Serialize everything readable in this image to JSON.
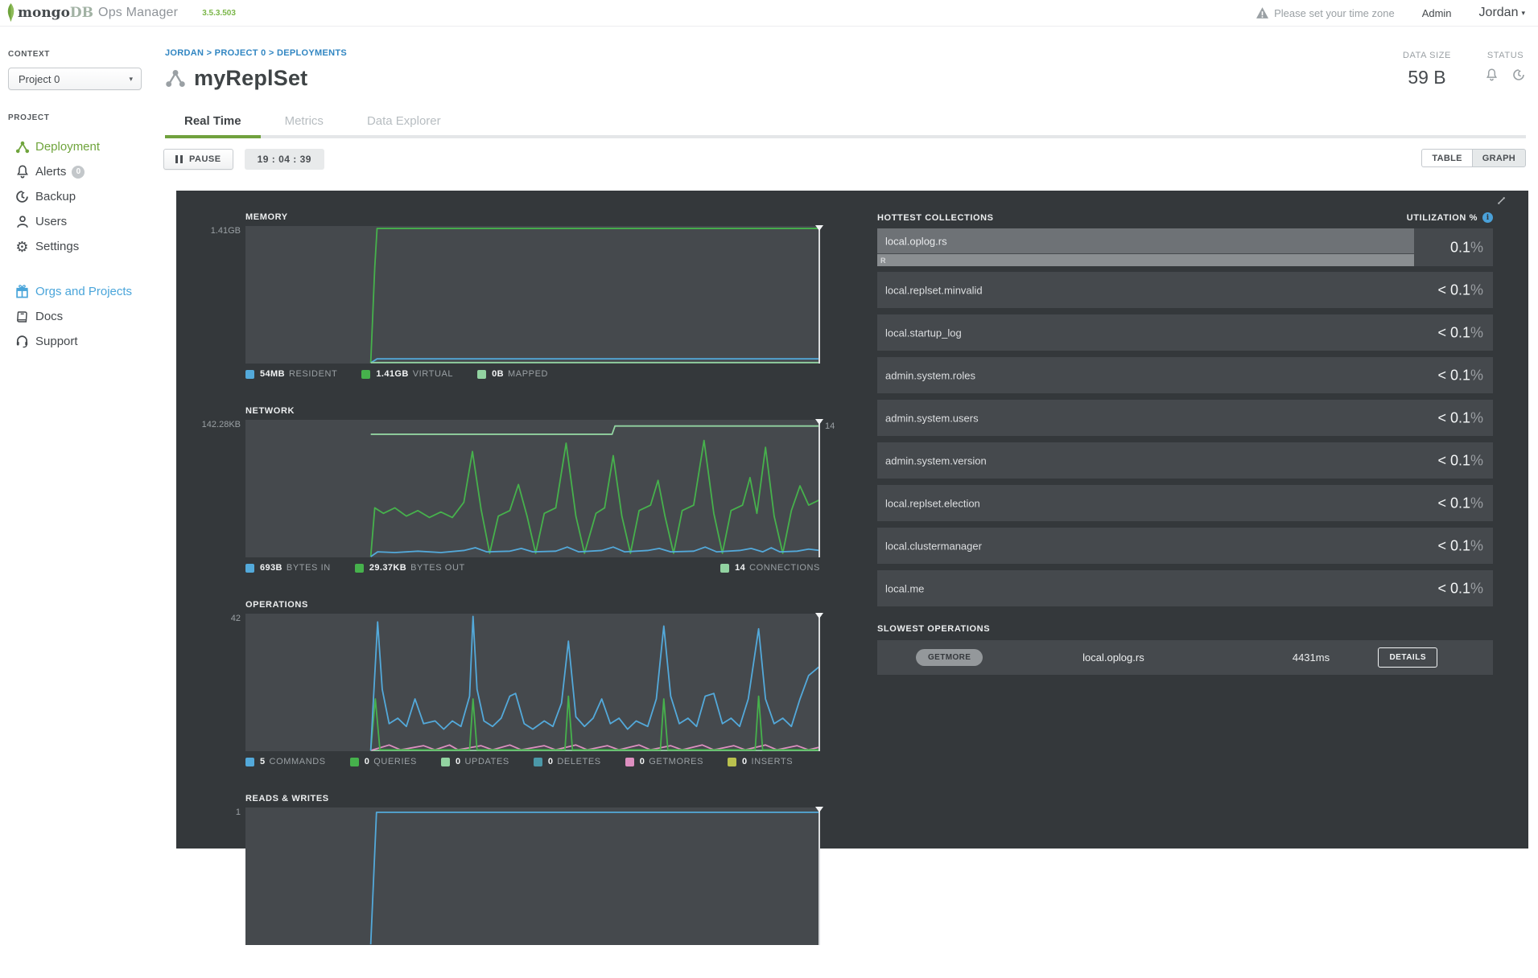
{
  "navbar": {
    "brand_mongo": "mongo",
    "brand_db": "DB",
    "brand_suffix": "Ops Manager",
    "version": "3.5.3.503",
    "timezone_warning": "Please set your time zone",
    "admin_label": "Admin",
    "user_label": "Jordan"
  },
  "sidebar": {
    "context_label": "CONTEXT",
    "context_value": "Project 0",
    "project_label": "PROJECT",
    "items": [
      {
        "label": "Deployment",
        "icon": "replica-set-icon",
        "active": true
      },
      {
        "label": "Alerts",
        "icon": "bell-icon",
        "badge": "0"
      },
      {
        "label": "Backup",
        "icon": "backup-clock-icon"
      },
      {
        "label": "Users",
        "icon": "user-icon"
      },
      {
        "label": "Settings",
        "icon": "gear-icon"
      }
    ],
    "secondary_items": [
      {
        "label": "Orgs and Projects",
        "icon": "gift-icon",
        "accent": true
      },
      {
        "label": "Docs",
        "icon": "book-icon"
      },
      {
        "label": "Support",
        "icon": "headset-icon"
      }
    ]
  },
  "header": {
    "breadcrumb": "JORDAN > PROJECT 0 > DEPLOYMENTS",
    "title": "myReplSet",
    "data_size_label": "DATA SIZE",
    "data_size_value": "59 B",
    "status_label": "STATUS"
  },
  "tabs": [
    {
      "label": "Real Time",
      "active": true
    },
    {
      "label": "Metrics",
      "active": false
    },
    {
      "label": "Data Explorer",
      "active": false
    }
  ],
  "controls": {
    "pause_label": "PAUSE",
    "clock": "19 : 04 : 39",
    "table_label": "TABLE",
    "graph_label": "GRAPH"
  },
  "charts": [
    {
      "type": "line",
      "title": "MEMORY",
      "y_axis_label": "1.41GB",
      "legend": [
        {
          "color": "#53a9da",
          "value": "54MB",
          "label": "RESIDENT"
        },
        {
          "color": "#46b14c",
          "value": "1.41GB",
          "label": "VIRTUAL"
        },
        {
          "color": "#92d3a1",
          "value": "0B",
          "label": "MAPPED"
        }
      ],
      "series": [
        {
          "name": "virtual",
          "color": "#46b14c",
          "points": [
            [
              21.8,
              99.5
            ],
            [
              22.5,
              30
            ],
            [
              22.9,
              1.8
            ],
            [
              100,
              1.8
            ]
          ]
        },
        {
          "name": "resident",
          "color": "#53a9da",
          "points": [
            [
              21.8,
              99.5
            ],
            [
              22.9,
              96.6
            ],
            [
              100,
              96.6
            ]
          ]
        },
        {
          "name": "mapped",
          "color": "#92d3a1",
          "points": [
            [
              21.8,
              99.3
            ],
            [
              100,
              99.3
            ]
          ]
        }
      ]
    },
    {
      "type": "line",
      "title": "NETWORK",
      "y_axis_label": "142.28KB",
      "right_axis_label": "14",
      "legend": [
        {
          "color": "#53a9da",
          "value": "693B",
          "label": "BYTES IN"
        },
        {
          "color": "#46b14c",
          "value": "29.37KB",
          "label": "BYTES OUT"
        },
        {
          "color": "#92d3a1",
          "value": "14",
          "label": "CONNECTIONS",
          "right": true
        }
      ],
      "series": [
        {
          "name": "connections",
          "color": "#92d3a1",
          "points": [
            [
              21.8,
              10.5
            ],
            [
              63.8,
              10.5
            ],
            [
              64.3,
              4.5
            ],
            [
              100,
              4.5
            ]
          ]
        },
        {
          "name": "bytes_out",
          "color": "#46b14c",
          "points": [
            [
              21.8,
              99.5
            ],
            [
              22.5,
              64
            ],
            [
              24,
              68
            ],
            [
              26,
              64
            ],
            [
              28,
              70
            ],
            [
              30,
              66
            ],
            [
              32,
              71
            ],
            [
              34,
              67
            ],
            [
              36,
              71
            ],
            [
              38,
              60
            ],
            [
              39.5,
              23
            ],
            [
              41,
              65
            ],
            [
              42.5,
              97
            ],
            [
              44,
              70
            ],
            [
              46,
              66
            ],
            [
              47.5,
              47
            ],
            [
              49,
              70
            ],
            [
              50.5,
              97
            ],
            [
              52,
              68
            ],
            [
              54,
              64
            ],
            [
              55.8,
              17
            ],
            [
              57.5,
              70
            ],
            [
              59,
              97
            ],
            [
              61,
              68
            ],
            [
              62.5,
              64
            ],
            [
              64,
              26
            ],
            [
              65.5,
              70
            ],
            [
              67,
              97
            ],
            [
              68.5,
              66
            ],
            [
              70.5,
              62
            ],
            [
              71.8,
              44
            ],
            [
              73,
              70
            ],
            [
              74.5,
              97
            ],
            [
              76,
              66
            ],
            [
              78,
              62
            ],
            [
              79.8,
              15
            ],
            [
              81.5,
              68
            ],
            [
              83,
              97
            ],
            [
              84.5,
              66
            ],
            [
              86.5,
              62
            ],
            [
              87.8,
              42
            ],
            [
              89,
              68
            ],
            [
              90.5,
              20
            ],
            [
              92,
              70
            ],
            [
              93.5,
              97
            ],
            [
              95,
              66
            ],
            [
              96.5,
              48
            ],
            [
              98,
              62
            ],
            [
              100,
              58
            ]
          ]
        },
        {
          "name": "bytes_in",
          "color": "#53a9da",
          "points": [
            [
              21.8,
              99.5
            ],
            [
              23,
              96
            ],
            [
              26,
              96.5
            ],
            [
              30,
              95.5
            ],
            [
              34,
              96.5
            ],
            [
              38,
              95
            ],
            [
              40,
              93
            ],
            [
              42,
              96
            ],
            [
              46,
              95.5
            ],
            [
              48,
              93.5
            ],
            [
              50,
              96
            ],
            [
              54,
              95.5
            ],
            [
              56,
              92.5
            ],
            [
              58,
              96
            ],
            [
              62,
              95
            ],
            [
              64,
              92.5
            ],
            [
              66,
              96
            ],
            [
              70,
              95
            ],
            [
              72,
              93.5
            ],
            [
              74,
              96
            ],
            [
              78,
              95.5
            ],
            [
              80,
              92.5
            ],
            [
              82,
              96
            ],
            [
              86,
              95
            ],
            [
              88,
              93.5
            ],
            [
              90,
              96
            ],
            [
              91.5,
              93
            ],
            [
              93,
              96
            ],
            [
              96,
              95.5
            ],
            [
              98,
              94
            ],
            [
              100,
              95
            ]
          ]
        }
      ]
    },
    {
      "type": "line",
      "title": "OPERATIONS",
      "y_axis_label": "42",
      "legend": [
        {
          "color": "#53a9da",
          "value": "5",
          "label": "COMMANDS"
        },
        {
          "color": "#46b14c",
          "value": "0",
          "label": "QUERIES"
        },
        {
          "color": "#92d3a1",
          "value": "0",
          "label": "UPDATES"
        },
        {
          "color": "#4b98a8",
          "value": "0",
          "label": "DELETES"
        },
        {
          "color": "#dd8fc0",
          "value": "0",
          "label": "GETMORES"
        },
        {
          "color": "#b9c14e",
          "value": "0",
          "label": "INSERTS"
        }
      ],
      "series": [
        {
          "name": "inserts",
          "color": "#b9c14e",
          "points": [
            [
              21.8,
              99.7
            ],
            [
              100,
              99.7
            ]
          ]
        },
        {
          "name": "deletes",
          "color": "#4b98a8",
          "points": [
            [
              21.8,
              99.6
            ],
            [
              100,
              99.6
            ]
          ]
        },
        {
          "name": "updates",
          "color": "#92d3a1",
          "points": [
            [
              21.8,
              99.6
            ],
            [
              100,
              99.6
            ]
          ]
        },
        {
          "name": "getmores",
          "color": "#dd8fc0",
          "points": [
            [
              21.8,
              99.5
            ],
            [
              25,
              95.5
            ],
            [
              27,
              99
            ],
            [
              31,
              96
            ],
            [
              33,
              99
            ],
            [
              35.5,
              95.5
            ],
            [
              37,
              99
            ],
            [
              41,
              96
            ],
            [
              43,
              99
            ],
            [
              46,
              95.5
            ],
            [
              48,
              99
            ],
            [
              52,
              96
            ],
            [
              54,
              99
            ],
            [
              57.5,
              95.5
            ],
            [
              59.5,
              99
            ],
            [
              63,
              96
            ],
            [
              65,
              99
            ],
            [
              68.5,
              95.5
            ],
            [
              70.5,
              99
            ],
            [
              74,
              96
            ],
            [
              76,
              99
            ],
            [
              79.5,
              95.5
            ],
            [
              81.5,
              99
            ],
            [
              85,
              96
            ],
            [
              87,
              99
            ],
            [
              90.5,
              95.5
            ],
            [
              92.5,
              99
            ],
            [
              96,
              96
            ],
            [
              98,
              99
            ],
            [
              100,
              97
            ]
          ]
        },
        {
          "name": "queries",
          "color": "#46b14c",
          "points": [
            [
              21.8,
              99.5
            ],
            [
              22.6,
              62
            ],
            [
              23.4,
              99
            ],
            [
              39,
              99
            ],
            [
              39.6,
              62
            ],
            [
              40.3,
              99
            ],
            [
              55.6,
              99
            ],
            [
              56.2,
              60
            ],
            [
              56.9,
              99
            ],
            [
              72.2,
              99
            ],
            [
              72.8,
              62
            ],
            [
              73.5,
              99
            ],
            [
              88.7,
              99
            ],
            [
              89.3,
              60
            ],
            [
              90,
              99
            ],
            [
              100,
              99
            ]
          ]
        },
        {
          "name": "commands",
          "color": "#53a9da",
          "points": [
            [
              21.8,
              99.5
            ],
            [
              22.3,
              60
            ],
            [
              23,
              6
            ],
            [
              23.8,
              55
            ],
            [
              25,
              80
            ],
            [
              26.5,
              76
            ],
            [
              28,
              82
            ],
            [
              29.5,
              62
            ],
            [
              31,
              80
            ],
            [
              33,
              78
            ],
            [
              34.5,
              84
            ],
            [
              36,
              78
            ],
            [
              37.5,
              82
            ],
            [
              39,
              60
            ],
            [
              39.6,
              2
            ],
            [
              40.3,
              55
            ],
            [
              41.5,
              78
            ],
            [
              43,
              82
            ],
            [
              44.5,
              76
            ],
            [
              46,
              60
            ],
            [
              47,
              58
            ],
            [
              48.5,
              80
            ],
            [
              50,
              84
            ],
            [
              52,
              78
            ],
            [
              53.5,
              82
            ],
            [
              55,
              65
            ],
            [
              56.2,
              20
            ],
            [
              57.5,
              75
            ],
            [
              59,
              82
            ],
            [
              60.5,
              76
            ],
            [
              62,
              62
            ],
            [
              63.5,
              80
            ],
            [
              65,
              76
            ],
            [
              66.5,
              84
            ],
            [
              68,
              78
            ],
            [
              70,
              82
            ],
            [
              71.5,
              62
            ],
            [
              72.8,
              9
            ],
            [
              74,
              60
            ],
            [
              75.5,
              80
            ],
            [
              77,
              76
            ],
            [
              78.5,
              82
            ],
            [
              80,
              60
            ],
            [
              81.5,
              58
            ],
            [
              83,
              80
            ],
            [
              84.5,
              76
            ],
            [
              86,
              82
            ],
            [
              87.5,
              62
            ],
            [
              89.3,
              11
            ],
            [
              90.5,
              62
            ],
            [
              92,
              80
            ],
            [
              93.5,
              76
            ],
            [
              95,
              82
            ],
            [
              96.5,
              62
            ],
            [
              98,
              45
            ],
            [
              100,
              38
            ]
          ]
        }
      ]
    },
    {
      "type": "line",
      "title": "READS & WRITES",
      "y_axis_label": "1",
      "legend": [],
      "series": [
        {
          "name": "reads",
          "color": "#53a9da",
          "points": [
            [
              21.8,
              99.5
            ],
            [
              22.8,
              3.5
            ],
            [
              100,
              3.5
            ]
          ]
        }
      ]
    }
  ],
  "hottest": {
    "title": "HOTTEST COLLECTIONS",
    "utilization_label": "UTILIZATION %",
    "rows": [
      {
        "name": "local.oplog.rs",
        "value": "0.1",
        "bars": true,
        "bar_label": "R"
      },
      {
        "name": "local.replset.minvalid",
        "value": "< 0.1"
      },
      {
        "name": "local.startup_log",
        "value": "< 0.1"
      },
      {
        "name": "admin.system.roles",
        "value": "< 0.1"
      },
      {
        "name": "admin.system.users",
        "value": "< 0.1"
      },
      {
        "name": "admin.system.version",
        "value": "< 0.1"
      },
      {
        "name": "local.replset.election",
        "value": "< 0.1"
      },
      {
        "name": "local.clustermanager",
        "value": "< 0.1"
      },
      {
        "name": "local.me",
        "value": "< 0.1"
      }
    ]
  },
  "slowest": {
    "title": "SLOWEST OPERATIONS",
    "op_type": "GETMORE",
    "namespace": "local.oplog.rs",
    "duration": "4431ms",
    "details_label": "DETAILS"
  }
}
